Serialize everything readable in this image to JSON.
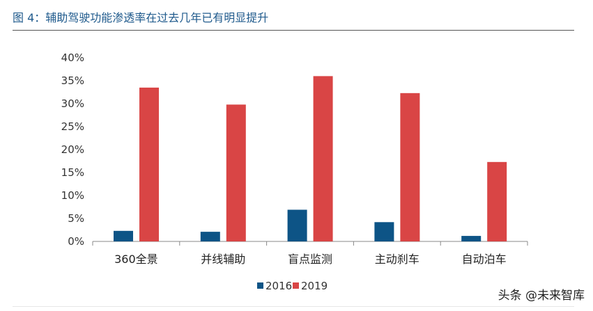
{
  "figure_title": "图 4：辅助驾驶功能渗透率在过去几年已有明显提升",
  "watermark": "头条 @未来智库",
  "colors": {
    "title": "#1f5a8c",
    "series_2016": "#0d5486",
    "series_2019": "#d94545"
  },
  "chart_data": {
    "type": "bar",
    "title": "",
    "xlabel": "",
    "ylabel": "",
    "categories": [
      "360全景",
      "并线辅助",
      "盲点监测",
      "主动刹车",
      "自动泊车"
    ],
    "series": [
      {
        "name": "2016",
        "values": [
          0.023,
          0.021,
          0.069,
          0.042,
          0.012
        ]
      },
      {
        "name": "2019",
        "values": [
          0.335,
          0.298,
          0.36,
          0.323,
          0.173
        ]
      }
    ],
    "ylim": [
      0,
      0.4
    ],
    "yticks": [
      0,
      0.05,
      0.1,
      0.15,
      0.2,
      0.25,
      0.3,
      0.35,
      0.4
    ],
    "ytick_labels": [
      "0%",
      "5%",
      "10%",
      "15%",
      "20%",
      "25%",
      "30%",
      "35%",
      "40%"
    ],
    "grid": false,
    "legend_position": "bottom-center"
  }
}
